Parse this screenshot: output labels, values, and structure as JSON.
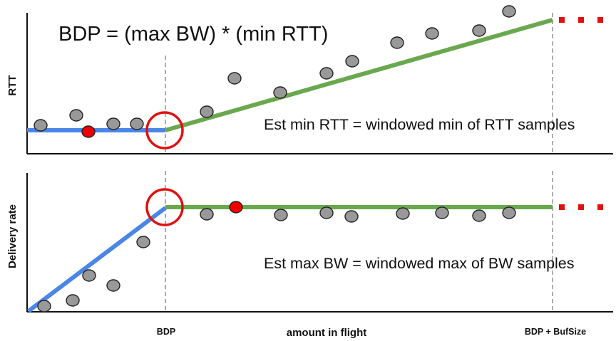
{
  "formula": "BDP = (max BW) * (min RTT)",
  "top_panel": {
    "ylabel": "RTT",
    "annotation": "Est min RTT = windowed min of RTT samples"
  },
  "bottom_panel": {
    "ylabel": "Delivery rate",
    "annotation": "Est max BW = windowed max of BW samples"
  },
  "xaxis": {
    "label": "amount in flight",
    "marker_bdp": "BDP",
    "marker_bdp_buf": "BDP + BufSize"
  },
  "colors": {
    "app_limited_line": "#4a86e8",
    "bandwidth_limited_line": "#6aa84f",
    "sample_point": "#999999",
    "highlight_point": "#ee0000",
    "marker_circle": "#e01010",
    "continuation": "#e01010"
  },
  "icons": {
    "highlight_circle": "circle-highlight-icon",
    "continuation": "dots-icon"
  }
}
